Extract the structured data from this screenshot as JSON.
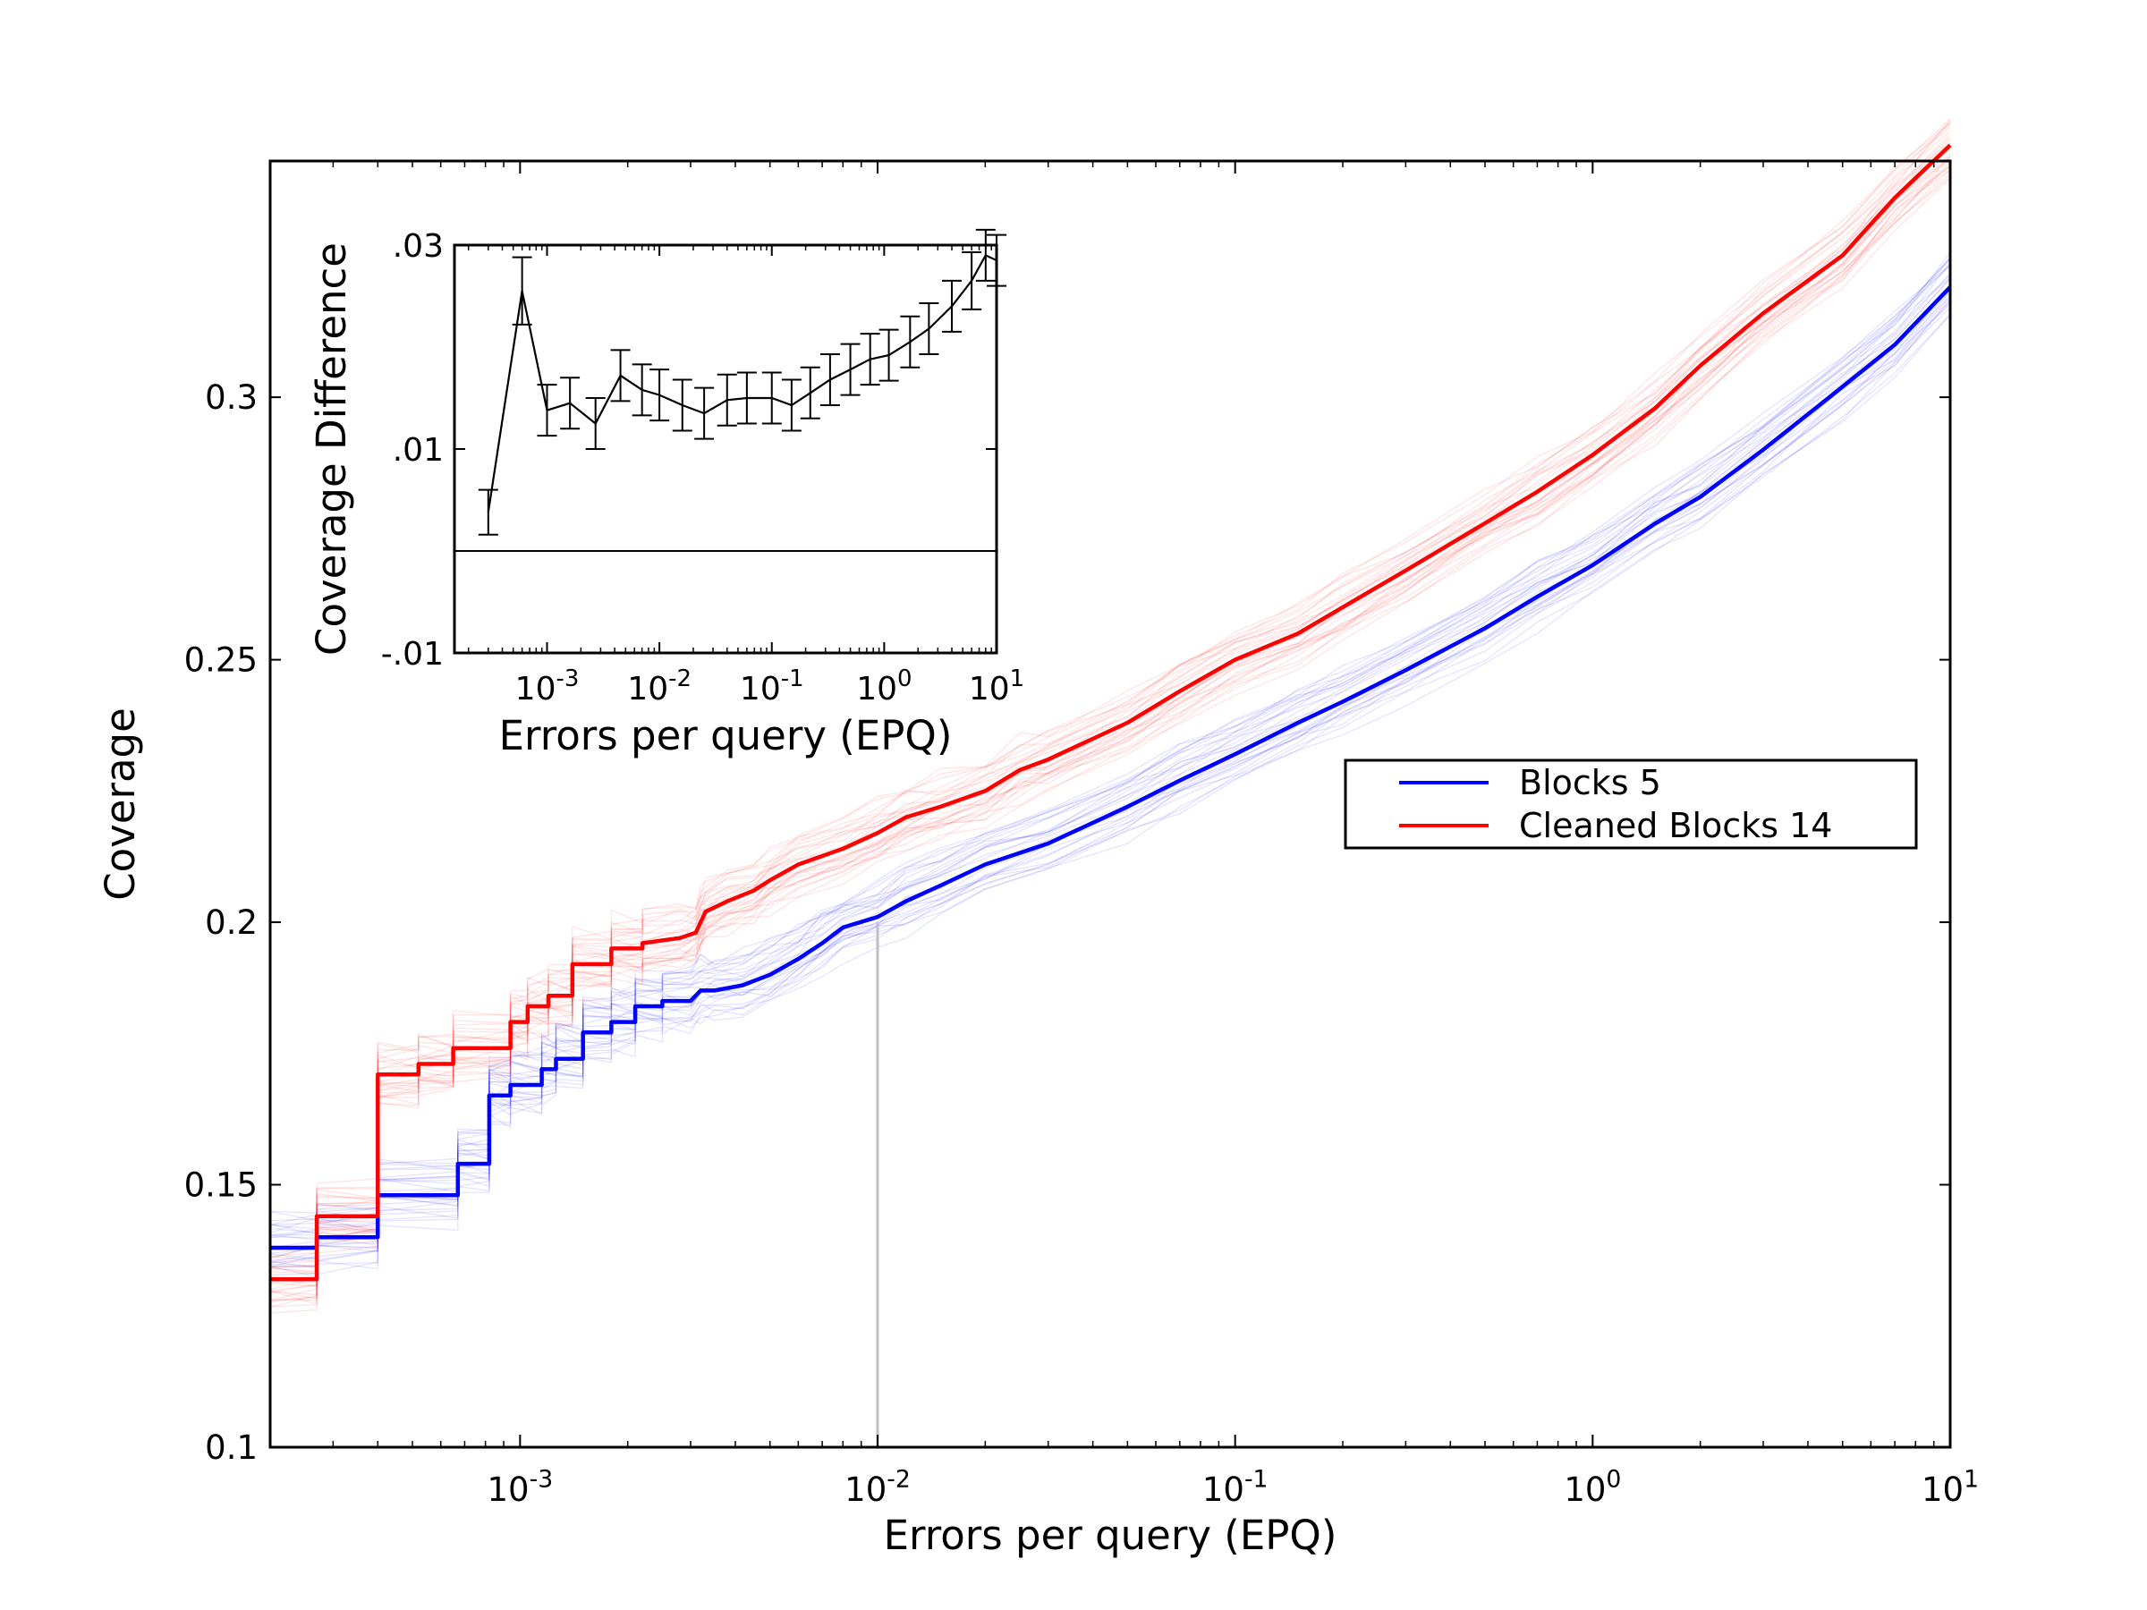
{
  "chart_data": [
    {
      "type": "line",
      "xlabel": "Errors per query (EPQ)",
      "ylabel": "Coverage",
      "xscale": "log",
      "xlim": [
        0.0002,
        10
      ],
      "ylim": [
        0.1,
        0.345
      ],
      "x_ticks": [
        {
          "value": 0.001,
          "base": "10",
          "exp": "-3"
        },
        {
          "value": 0.01,
          "base": "10",
          "exp": "-2"
        },
        {
          "value": 0.1,
          "base": "10",
          "exp": "-1"
        },
        {
          "value": 1,
          "base": "10",
          "exp": "0"
        },
        {
          "value": 10,
          "base": "10",
          "exp": "1"
        }
      ],
      "y_ticks": [
        {
          "value": 0.1,
          "label": "0.1"
        },
        {
          "value": 0.15,
          "label": "0.15"
        },
        {
          "value": 0.2,
          "label": "0.2"
        },
        {
          "value": 0.25,
          "label": "0.25"
        },
        {
          "value": 0.3,
          "label": "0.3"
        }
      ],
      "reference_line_x": 0.01,
      "legend": {
        "placement": "center-right",
        "entries": [
          "Blocks 5",
          "Cleaned Blocks 14"
        ]
      },
      "series": [
        {
          "name": "Blocks 5",
          "color": "#0000ff",
          "x": [
            0.0002,
            0.00027,
            0.00027,
            0.0004,
            0.0004,
            0.00067,
            0.00067,
            0.00082,
            0.00082,
            0.00094,
            0.00094,
            0.00115,
            0.00115,
            0.00126,
            0.00126,
            0.0015,
            0.0015,
            0.0018,
            0.0018,
            0.0021,
            0.0021,
            0.0025,
            0.0025,
            0.003,
            0.0032,
            0.0035,
            0.0042,
            0.005,
            0.006,
            0.007,
            0.008,
            0.01,
            0.012,
            0.015,
            0.02,
            0.03,
            0.05,
            0.07,
            0.1,
            0.15,
            0.2,
            0.3,
            0.5,
            0.7,
            1,
            1.5,
            2,
            3,
            5,
            7,
            10
          ],
          "y": [
            0.138,
            0.138,
            0.14,
            0.14,
            0.148,
            0.148,
            0.154,
            0.154,
            0.167,
            0.167,
            0.169,
            0.169,
            0.172,
            0.172,
            0.174,
            0.174,
            0.179,
            0.179,
            0.181,
            0.181,
            0.184,
            0.184,
            0.185,
            0.185,
            0.187,
            0.187,
            0.188,
            0.19,
            0.193,
            0.196,
            0.199,
            0.201,
            0.204,
            0.207,
            0.211,
            0.215,
            0.222,
            0.227,
            0.232,
            0.238,
            0.242,
            0.248,
            0.256,
            0.262,
            0.268,
            0.276,
            0.281,
            0.29,
            0.302,
            0.31,
            0.321
          ]
        },
        {
          "name": "Cleaned Blocks 14",
          "color": "#ff0000",
          "x": [
            0.0002,
            0.00027,
            0.00027,
            0.0004,
            0.0004,
            0.00052,
            0.00052,
            0.00065,
            0.00065,
            0.00094,
            0.00094,
            0.00105,
            0.00105,
            0.0012,
            0.0012,
            0.0014,
            0.0014,
            0.0018,
            0.0018,
            0.0022,
            0.0022,
            0.0028,
            0.0031,
            0.0032,
            0.0033,
            0.0038,
            0.0045,
            0.005,
            0.006,
            0.008,
            0.01,
            0.012,
            0.015,
            0.02,
            0.025,
            0.03,
            0.05,
            0.07,
            0.1,
            0.15,
            0.2,
            0.3,
            0.5,
            0.7,
            1,
            1.5,
            2,
            3,
            5,
            7,
            10
          ],
          "y": [
            0.132,
            0.132,
            0.144,
            0.144,
            0.171,
            0.171,
            0.173,
            0.173,
            0.176,
            0.176,
            0.181,
            0.181,
            0.184,
            0.184,
            0.186,
            0.186,
            0.192,
            0.192,
            0.195,
            0.195,
            0.196,
            0.197,
            0.198,
            0.2,
            0.202,
            0.204,
            0.206,
            0.208,
            0.211,
            0.214,
            0.217,
            0.22,
            0.222,
            0.225,
            0.229,
            0.231,
            0.238,
            0.244,
            0.25,
            0.255,
            0.26,
            0.267,
            0.276,
            0.282,
            0.289,
            0.298,
            0.306,
            0.316,
            0.327,
            0.338,
            0.348
          ]
        }
      ]
    },
    {
      "type": "line",
      "xlabel": "Errors per query (EPQ)",
      "ylabel": "Coverage Difference",
      "xscale": "log",
      "xlim": [
        0.00015,
        10
      ],
      "ylim": [
        -0.01,
        0.03
      ],
      "x_ticks": [
        {
          "value": 0.001,
          "base": "10",
          "exp": "-3"
        },
        {
          "value": 0.01,
          "base": "10",
          "exp": "-2"
        },
        {
          "value": 0.1,
          "base": "10",
          "exp": "-1"
        },
        {
          "value": 1,
          "base": "10",
          "exp": "0"
        },
        {
          "value": 10,
          "base": "10",
          "exp": "1"
        }
      ],
      "y_ticks": [
        {
          "value": -0.01,
          "label": "-.01"
        },
        {
          "value": 0.01,
          "label": ".01"
        },
        {
          "value": 0.03,
          "label": ".03"
        }
      ],
      "zero_line": 0,
      "series": [
        {
          "name": "",
          "color": "#000000",
          "x": [
            0.0003,
            0.0006,
            0.001,
            0.0016,
            0.0027,
            0.0045,
            0.007,
            0.01,
            0.016,
            0.025,
            0.04,
            0.06,
            0.1,
            0.15,
            0.22,
            0.33,
            0.5,
            0.75,
            1.1,
            1.7,
            2.5,
            4,
            6,
            8,
            10
          ],
          "y": [
            0.0038,
            0.0255,
            0.0138,
            0.0145,
            0.0125,
            0.0172,
            0.0158,
            0.0153,
            0.0143,
            0.0135,
            0.0148,
            0.015,
            0.015,
            0.0143,
            0.0155,
            0.0168,
            0.0178,
            0.0188,
            0.0192,
            0.0205,
            0.0218,
            0.024,
            0.0265,
            0.029,
            0.0285
          ],
          "error": [
            0.0022,
            0.0033,
            0.0025,
            0.0025,
            0.0025,
            0.0025,
            0.0025,
            0.0025,
            0.0025,
            0.0025,
            0.0025,
            0.0025,
            0.0025,
            0.0025,
            0.0025,
            0.0025,
            0.0025,
            0.0025,
            0.0025,
            0.0025,
            0.0025,
            0.0025,
            0.0028,
            0.0025,
            0.0025
          ]
        }
      ]
    }
  ]
}
